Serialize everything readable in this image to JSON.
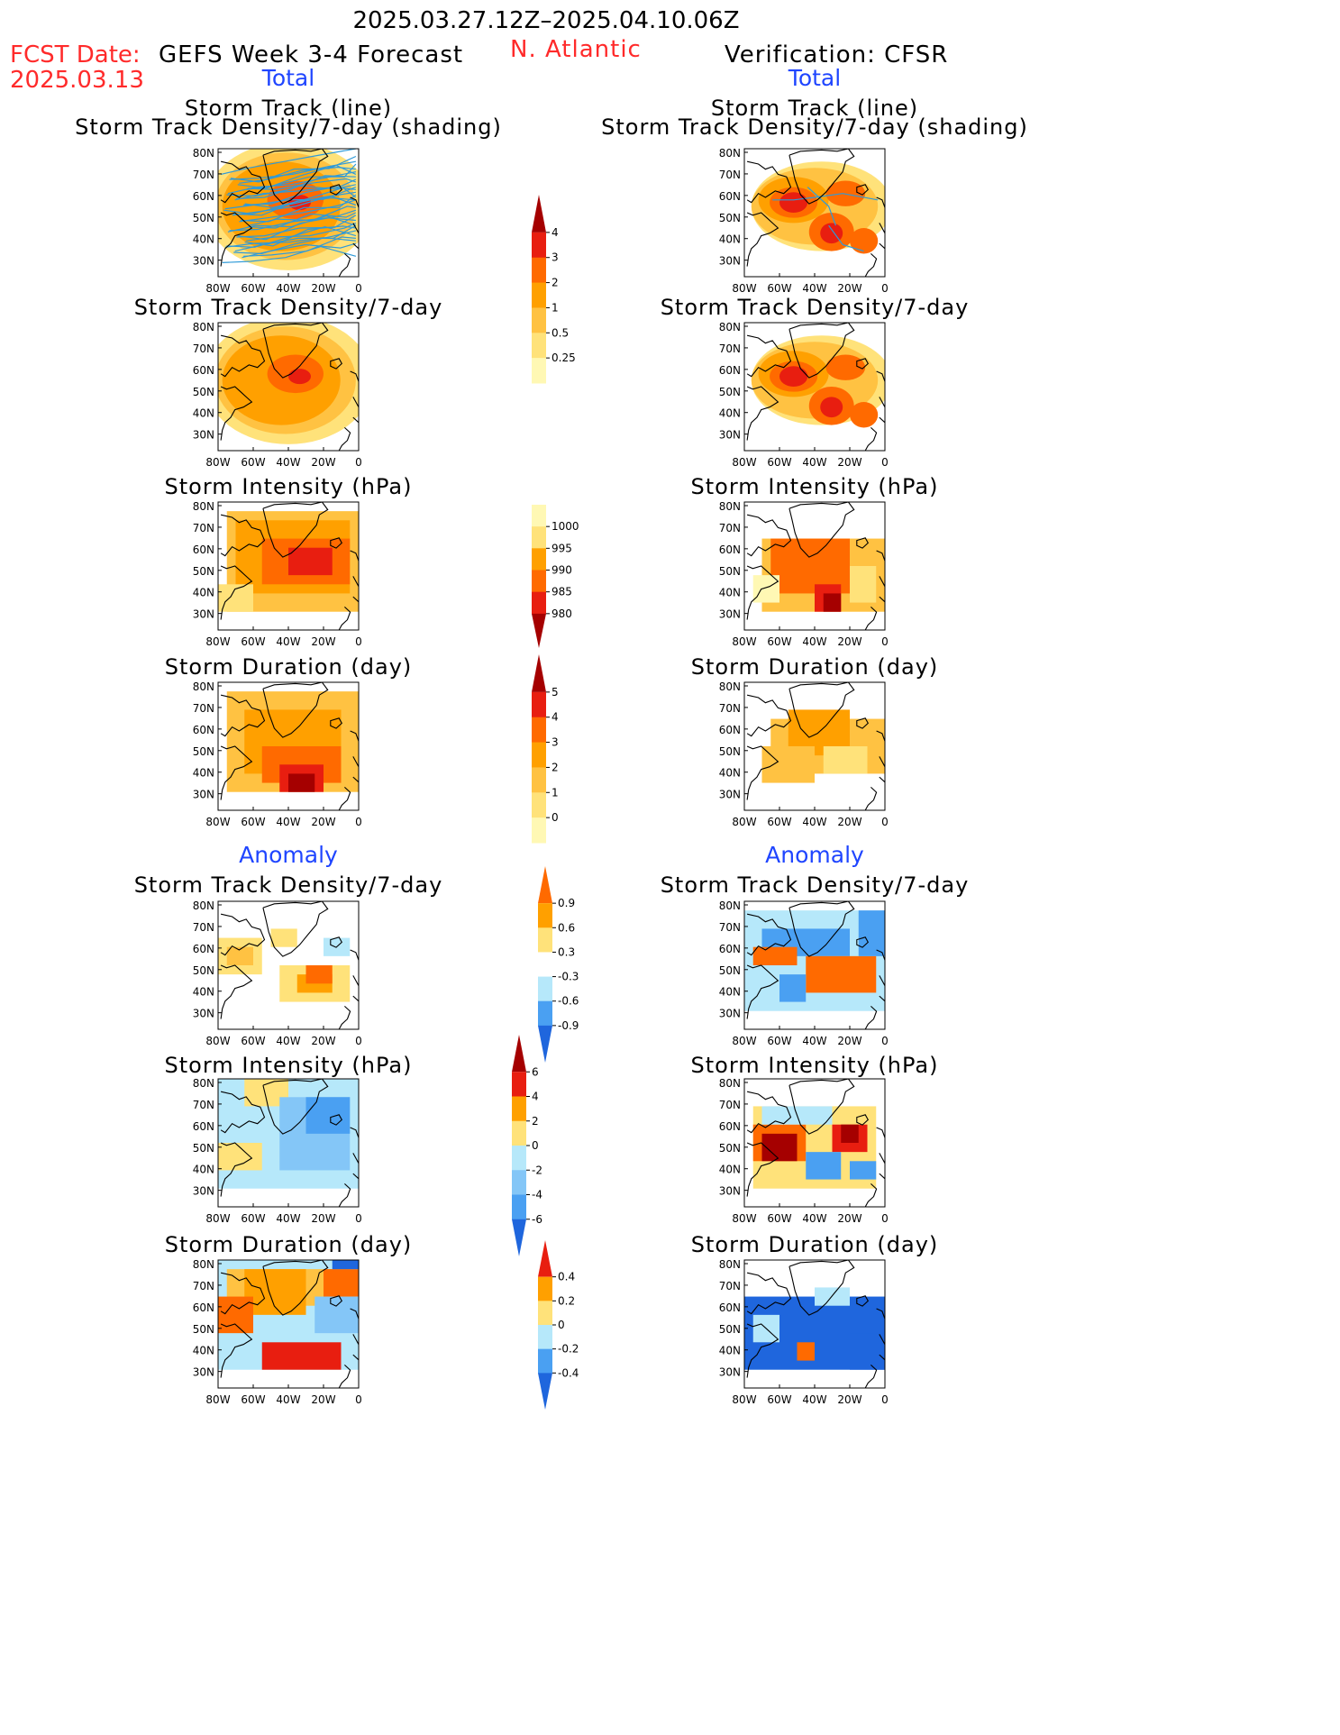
{
  "header": {
    "date_range": "2025.03.27.12Z–2025.04.10.06Z",
    "fcst_label": "FCST Date:",
    "fcst_date": "2025.03.13",
    "left_title": "GEFS Week 3-4 Forecast",
    "region": "N. Atlantic",
    "right_title": "Verification: CFSR"
  },
  "sections": {
    "total_label": "Total",
    "anomaly_label": "Anomaly"
  },
  "panel_titles": {
    "track_line": "Storm Track (line)",
    "track_shading": "Storm Track Density/7-day (shading)",
    "density": "Storm Track Density/7-day",
    "intensity": "Storm Intensity (hPa)",
    "duration": "Storm Duration (day)"
  },
  "axes": {
    "lat_labels": [
      "80N",
      "70N",
      "60N",
      "50N",
      "40N",
      "30N"
    ],
    "lon_labels": [
      "80W",
      "60W",
      "40W",
      "20W",
      "0"
    ]
  },
  "colorbars": {
    "density_total": [
      "4",
      "3",
      "2",
      "1",
      "0.5",
      "0.25"
    ],
    "intensity_total": [
      "1000",
      "995",
      "990",
      "985",
      "980"
    ],
    "duration_total": [
      "5",
      "4",
      "3",
      "2",
      "1",
      "0"
    ],
    "density_anom": [
      "0.9",
      "0.6",
      "0.3",
      "-0.3",
      "-0.6",
      "-0.9"
    ],
    "intensity_anom": [
      "6",
      "4",
      "2",
      "0",
      "-2",
      "-4",
      "-6"
    ],
    "duration_anom": [
      "0.4",
      "0.2",
      "0",
      "-0.2",
      "-0.4"
    ]
  },
  "colors": {
    "pale_yellow": "#fff8b4",
    "light_yellow": "#ffe27a",
    "yellow_orange": "#ffc242",
    "orange": "#ffa000",
    "dark_orange": "#ff6a00",
    "red": "#e81e10",
    "dark_red": "#a50000",
    "light_blue": "#b6e8fa",
    "mid_blue": "#84c6f7",
    "blue": "#4aa0f2",
    "dark_blue": "#1f66dd",
    "track_blue": "#2f9ad8"
  }
}
